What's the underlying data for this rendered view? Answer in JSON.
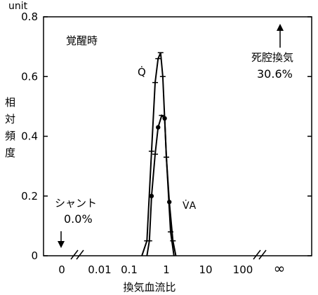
{
  "chart_data": {
    "type": "line",
    "y_unit": "unit",
    "ylabel": "相対頻度",
    "xlabel": "換気血流比",
    "yticks": [
      "0",
      "0.2",
      "0.4",
      "0.6",
      "0.8"
    ],
    "xticks": [
      "0",
      "0.01",
      "0.1",
      "1",
      "10",
      "100",
      "∞"
    ],
    "ylim": [
      0,
      0.8
    ],
    "x_scale": "log",
    "condition_label": "覚醒時",
    "series": [
      {
        "name": "Q̇",
        "x": [
          0.22,
          0.3,
          0.4,
          0.5,
          0.6,
          0.7,
          0.8,
          1.0,
          1.3,
          1.6
        ],
        "values": [
          0.0,
          0.05,
          0.35,
          0.58,
          0.66,
          0.68,
          0.6,
          0.33,
          0.08,
          0.0
        ]
      },
      {
        "name": "V̇A",
        "x": [
          0.3,
          0.35,
          0.4,
          0.5,
          0.6,
          0.75,
          0.9,
          1.0,
          1.2,
          1.5,
          1.8
        ],
        "values": [
          0.0,
          0.05,
          0.2,
          0.34,
          0.43,
          0.47,
          0.46,
          0.33,
          0.18,
          0.05,
          0.0
        ]
      }
    ],
    "annotations": {
      "shunt_label": "シャント",
      "shunt_value": "0.0%",
      "dead_space_label": "死腔換気",
      "dead_space_value": "30.6%"
    }
  }
}
